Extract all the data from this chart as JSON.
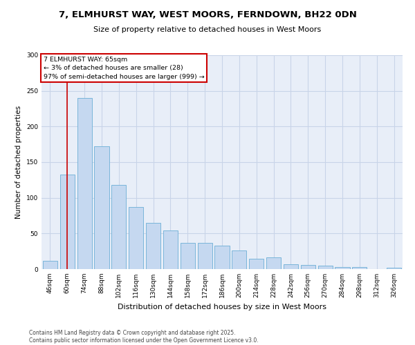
{
  "title_line1": "7, ELMHURST WAY, WEST MOORS, FERNDOWN, BH22 0DN",
  "title_line2": "Size of property relative to detached houses in West Moors",
  "xlabel": "Distribution of detached houses by size in West Moors",
  "ylabel": "Number of detached properties",
  "categories": [
    "46sqm",
    "60sqm",
    "74sqm",
    "88sqm",
    "102sqm",
    "116sqm",
    "130sqm",
    "144sqm",
    "158sqm",
    "172sqm",
    "186sqm",
    "200sqm",
    "214sqm",
    "228sqm",
    "242sqm",
    "256sqm",
    "270sqm",
    "284sqm",
    "298sqm",
    "312sqm",
    "326sqm"
  ],
  "values": [
    12,
    133,
    240,
    172,
    118,
    87,
    65,
    54,
    37,
    37,
    33,
    26,
    15,
    16,
    7,
    6,
    5,
    3,
    3,
    0,
    2
  ],
  "bar_color": "#c5d8f0",
  "bar_edge_color": "#6baed6",
  "annotation_label": "7 ELMHURST WAY: 65sqm\n← 3% of detached houses are smaller (28)\n97% of semi-detached houses are larger (999) →",
  "annotation_box_color": "#ffffff",
  "annotation_box_edge": "#cc0000",
  "vline_color": "#cc0000",
  "grid_color": "#c8d4e8",
  "bg_color": "#e8eef8",
  "footer": "Contains HM Land Registry data © Crown copyright and database right 2025.\nContains public sector information licensed under the Open Government Licence v3.0.",
  "ylim": [
    0,
    300
  ],
  "yticks": [
    0,
    50,
    100,
    150,
    200,
    250,
    300
  ],
  "title1_fontsize": 9.5,
  "title2_fontsize": 8.0,
  "xlabel_fontsize": 8.0,
  "ylabel_fontsize": 7.5,
  "tick_fontsize": 6.5,
  "annot_fontsize": 6.8,
  "footer_fontsize": 5.5
}
